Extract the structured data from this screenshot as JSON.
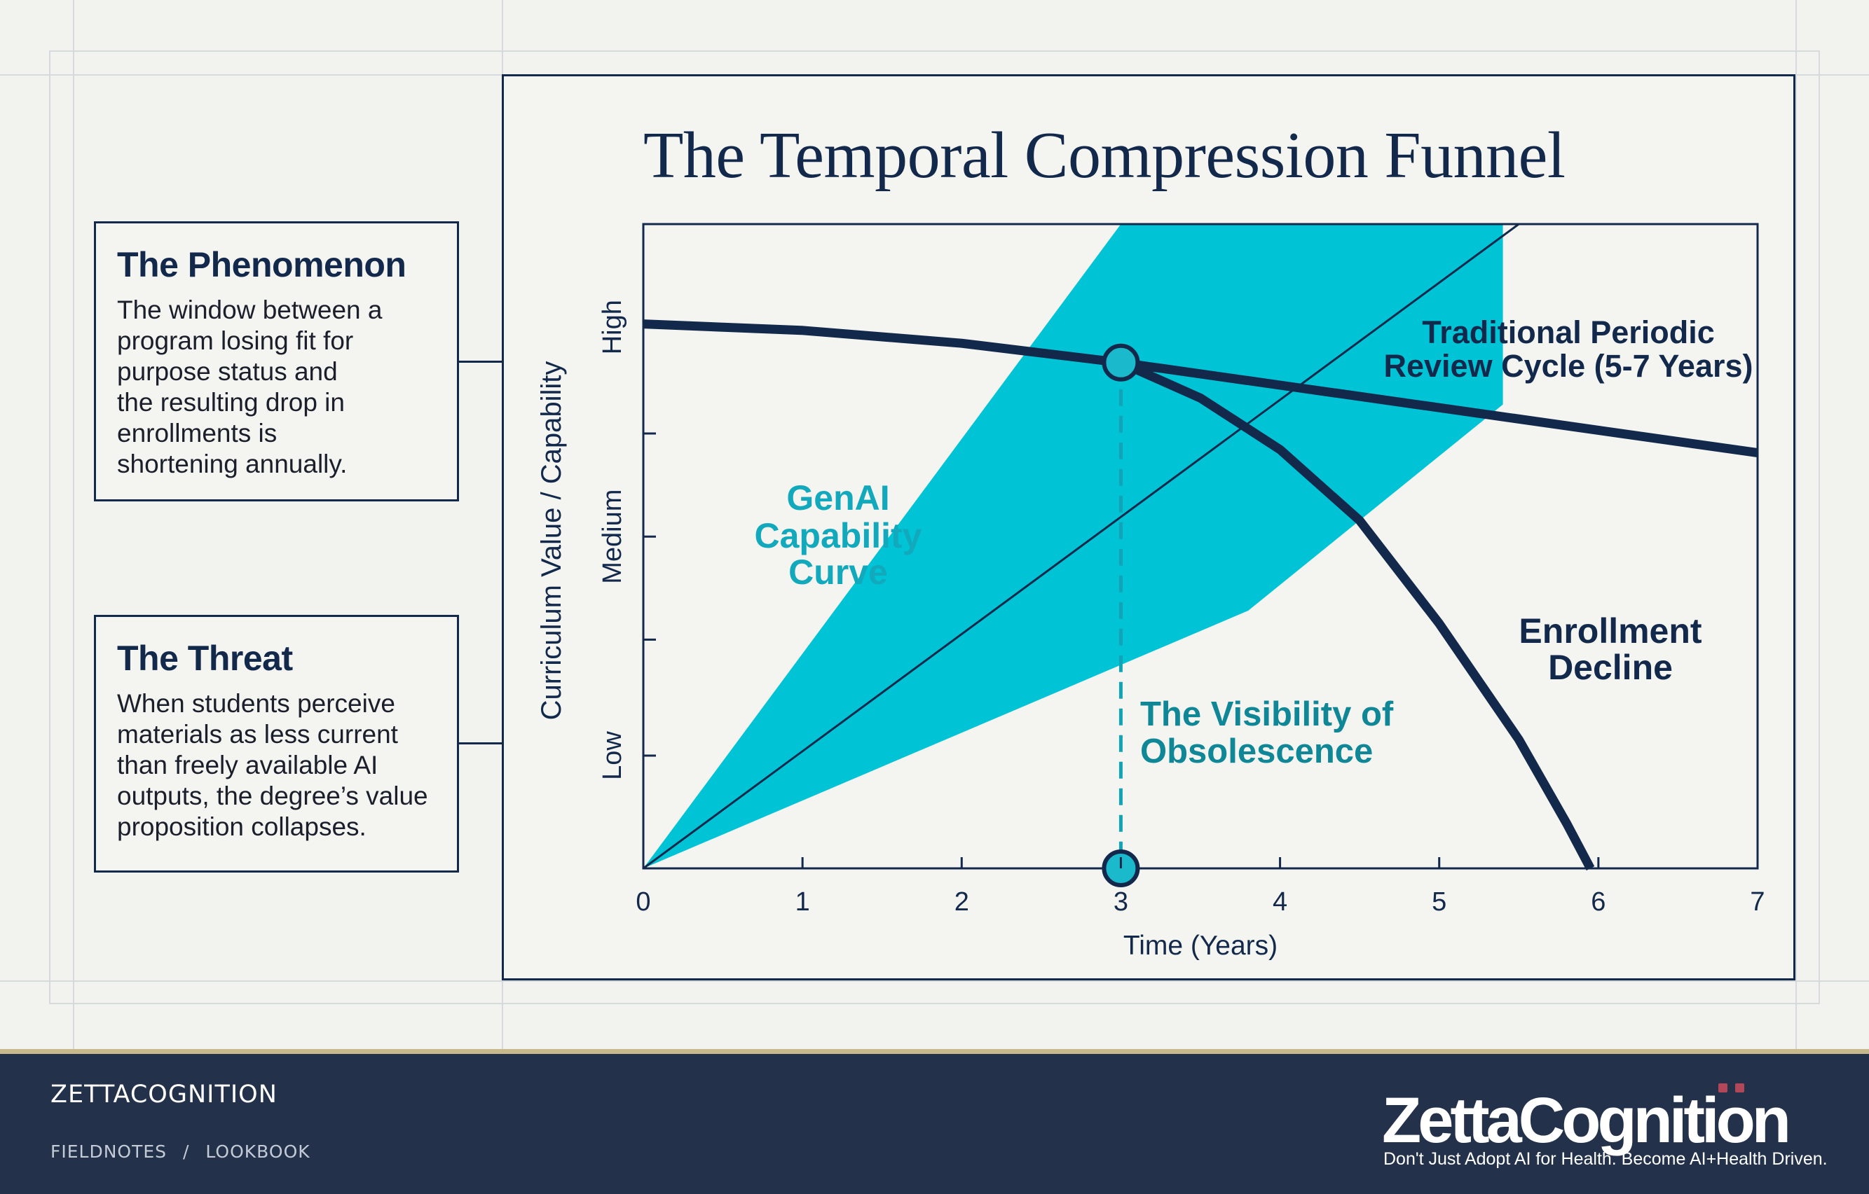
{
  "cards": [
    {
      "title": "The Phenomenon",
      "lines": [
        "The window between a",
        "program losing fit for",
        "purpose status and",
        "the resulting drop in",
        "enrollments is",
        "shortening annually."
      ]
    },
    {
      "title": "The Threat",
      "lines": [
        "When students perceive",
        "materials as less current",
        "than freely available AI",
        "outputs, the degree’s value",
        "proposition collapses."
      ]
    }
  ],
  "chart_data": {
    "type": "line",
    "title": "The Temporal Compression Funnel",
    "xlabel": "Time (Years)",
    "ylabel": "Curriculum Value / Capability",
    "xlim": [
      0,
      7
    ],
    "ylim": [
      0,
      10
    ],
    "x_ticks": [
      "0",
      "1",
      "2",
      "3",
      "4",
      "5",
      "6",
      "7"
    ],
    "y_tick_labels": [
      {
        "label": "Low",
        "value": 1.75
      },
      {
        "label": "Medium",
        "value": 5.15
      },
      {
        "label": "High",
        "value": 8.4
      }
    ],
    "grid": false,
    "colors": {
      "navy": "#13294b",
      "teal": "#00c4d6",
      "teal_text": "#12a9bd"
    },
    "series": [
      {
        "name": "Traditional Periodic Review Cycle (5-7 Years)",
        "x": [
          0,
          1,
          2,
          3,
          4,
          5,
          6,
          7
        ],
        "y": [
          8.45,
          8.35,
          8.15,
          7.85,
          7.5,
          7.15,
          6.8,
          6.45
        ]
      },
      {
        "name": "Enrollment Decline",
        "x": [
          3,
          3.5,
          4,
          4.5,
          5,
          5.5,
          5.8,
          5.95
        ],
        "y": [
          7.85,
          7.3,
          6.5,
          5.4,
          3.8,
          2.0,
          0.7,
          0
        ]
      },
      {
        "name": "GenAI Capability Curve",
        "x": [
          0,
          5.5
        ],
        "y": [
          0,
          10
        ]
      }
    ],
    "bands": [
      {
        "name": "GenAI Capability Curve",
        "x": [
          0,
          3.8,
          5.4
        ],
        "y_low": [
          0,
          4.0,
          7.2
        ],
        "y_high": [
          0,
          10,
          10
        ]
      }
    ],
    "markers": [
      {
        "x": 3,
        "y": 7.85
      },
      {
        "x": 3,
        "y": 0
      }
    ],
    "annotations": [
      {
        "text": "GenAI Capability Curve",
        "lines": [
          "GenAI",
          "Capability",
          "Curve"
        ]
      },
      {
        "text": "Traditional Periodic Review Cycle (5-7 Years)",
        "lines": [
          "Traditional Periodic",
          "Review Cycle (5-7 Years)"
        ]
      },
      {
        "text": "Enrollment Decline",
        "lines": [
          "Enrollment",
          "Decline"
        ]
      },
      {
        "text": "The Visibility of Obsolescence",
        "lines": [
          "The Visibility of",
          "Obsolescence"
        ]
      }
    ]
  },
  "footer": {
    "brand": "ZETTACOGNITION",
    "crumbs": [
      "FIELDNOTES",
      "/",
      "LOOKBOOK"
    ],
    "logo_text": "ZettaCognition",
    "tagline": "Don't Just Adopt AI for Health. Become AI+Health Driven."
  }
}
